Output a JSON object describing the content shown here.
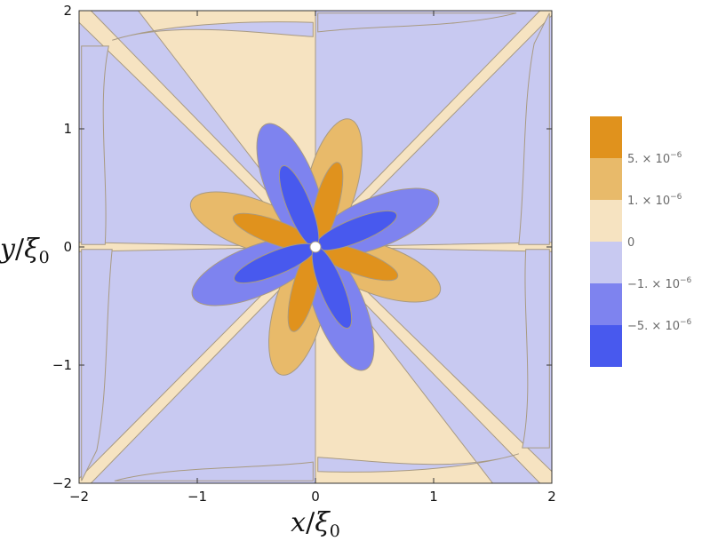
{
  "chart_data": {
    "type": "contour",
    "title": "",
    "xlabel": {
      "var": "x",
      "sep": "/",
      "sym": "ξ",
      "sub": "0"
    },
    "ylabel": {
      "var": "y",
      "sep": "/",
      "sym": "ξ",
      "sub": "0"
    },
    "xlim": [
      -2,
      2
    ],
    "ylim": [
      -2,
      2
    ],
    "xticks": [
      -2,
      -1,
      0,
      1,
      2
    ],
    "yticks": [
      -2,
      -1,
      0,
      1,
      2
    ],
    "xtick_labels": [
      "−2",
      "−1",
      "0",
      "1",
      "2"
    ],
    "ytick_labels": [
      "−2",
      "−1",
      "0",
      "1",
      "2"
    ],
    "grid": false,
    "symmetry": "d-wave, value sign pattern ~ sin(4θ); ± 8-lobe rosette around origin",
    "levels": [
      -5e-06,
      -1e-06,
      0,
      1e-06,
      5e-06
    ],
    "legend": {
      "placement": "right",
      "bands": [
        {
          "color": "#E0921D",
          "range": [
            5e-06,
            null
          ]
        },
        {
          "color": "#E8BA6A",
          "range": [
            1e-06,
            5e-06
          ]
        },
        {
          "color": "#F6E3C1",
          "range": [
            0,
            1e-06
          ]
        },
        {
          "color": "#C8C9F1",
          "range": [
            -1e-06,
            0
          ]
        },
        {
          "color": "#7E83EF",
          "range": [
            -5e-06,
            -1e-06
          ]
        },
        {
          "color": "#4859EE",
          "range": [
            null,
            -5e-06
          ]
        }
      ],
      "boundary_labels": [
        {
          "mant": "5. × 10",
          "exp": "−6"
        },
        {
          "mant": "1. × 10",
          "exp": "−6"
        },
        {
          "mant": "0",
          "exp": ""
        },
        {
          "mant": "−1. × 10",
          "exp": "−6"
        },
        {
          "mant": "−5. × 10",
          "exp": "−6"
        }
      ]
    }
  },
  "colors": {
    "positive_strong": "#E0921D",
    "positive_mid": "#E8BA6A",
    "positive_weak": "#F6E3C1",
    "negative_weak": "#C8C9F1",
    "negative_mid": "#7E83EF",
    "negative_strong": "#4859EE",
    "contour_line": "#A89A82",
    "frame": "#333333"
  }
}
